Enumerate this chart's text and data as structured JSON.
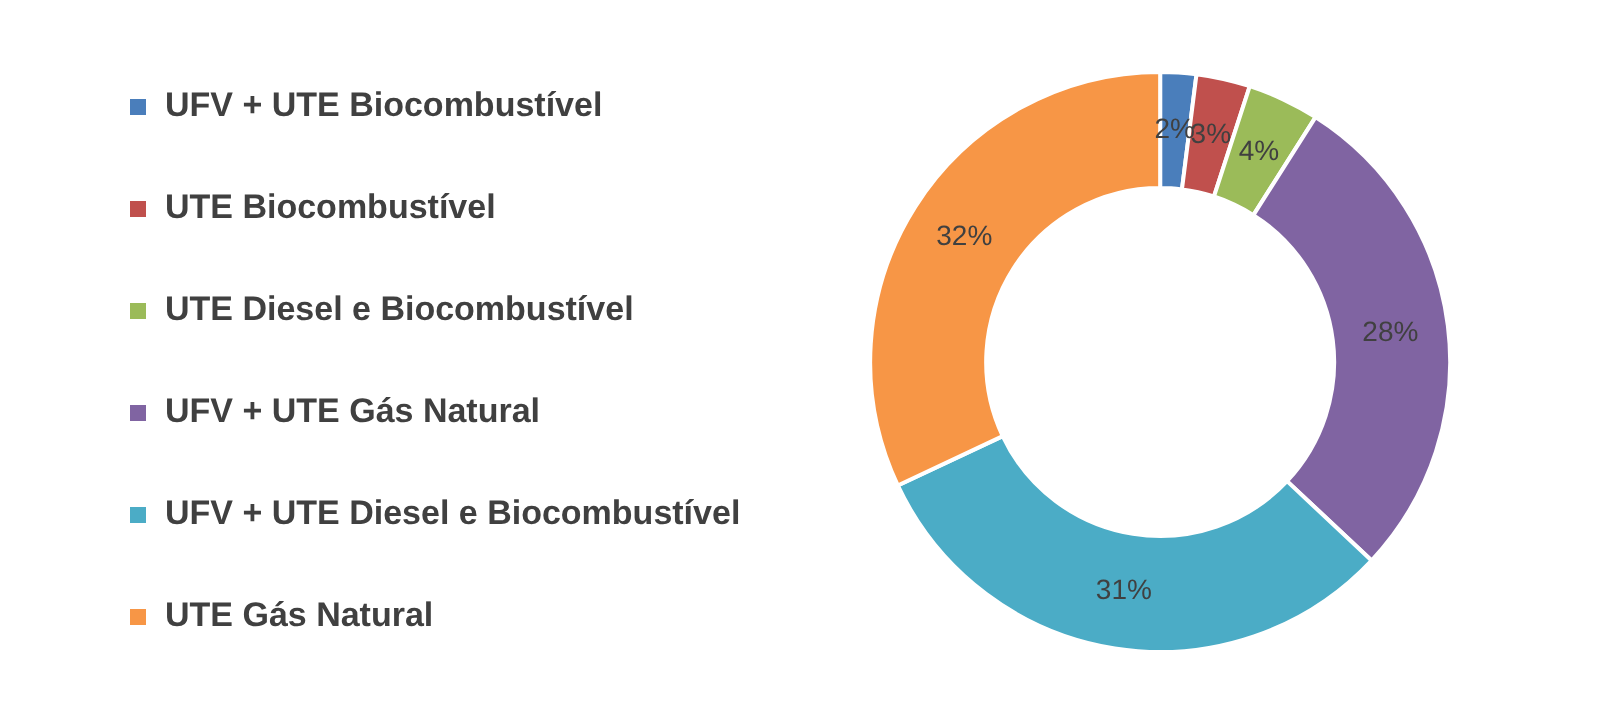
{
  "chart_data": {
    "type": "donut",
    "categories": [
      "UFV + UTE Biocombustível",
      "UTE Biocombustível",
      "UTE Diesel e Biocombustível",
      "UFV + UTE Gás Natural",
      "UFV + UTE Diesel e Biocombustível",
      "UTE Gás Natural"
    ],
    "values": [
      2,
      3,
      4,
      28,
      31,
      32
    ],
    "colors": [
      "#4a7ebb",
      "#c0504d",
      "#9bbb59",
      "#8064a2",
      "#4bacc6",
      "#f79646"
    ],
    "value_labels": [
      "2%",
      "3%",
      "4%",
      "28%",
      "31%",
      "32%"
    ],
    "legend": "left"
  }
}
